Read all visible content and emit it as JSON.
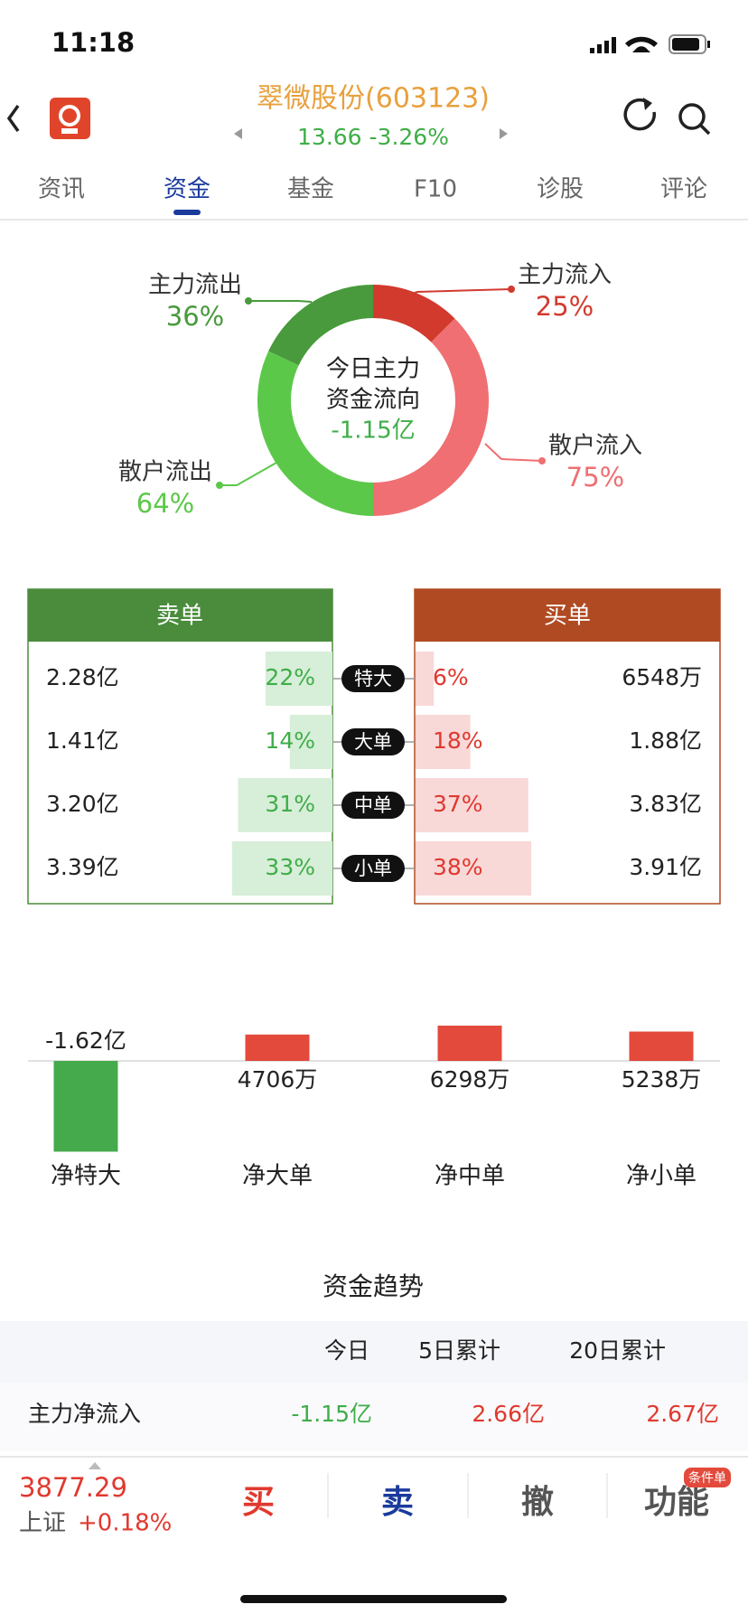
{
  "status": {
    "time": "11:18"
  },
  "header": {
    "title": "翠微股份(603123)",
    "quote": "13.66 -3.26%"
  },
  "tabs": [
    "资讯",
    "资金",
    "基金",
    "F10",
    "诊股",
    "评论"
  ],
  "donut": {
    "center": [
      "今日主力",
      "资金流向"
    ],
    "center_value": "-1.15亿",
    "segments": [
      {
        "name": "主力流入",
        "value": 25,
        "label": "25%",
        "color": "#d23a2e"
      },
      {
        "name": "散户流入",
        "value": 75,
        "label": "75%",
        "color": "#ef6f72"
      },
      {
        "name": "散户流出",
        "value": 64,
        "label": "64%",
        "color": "#5cc84a"
      },
      {
        "name": "主力流出",
        "value": 36,
        "label": "36%",
        "color": "#489a3c"
      }
    ]
  },
  "orders": {
    "sell_header": "卖单",
    "buy_header": "买单",
    "rows": [
      {
        "type": "特大",
        "sell": "2.28亿",
        "sell_pct": {
          "value": 22,
          "label": "22%"
        },
        "buy_pct": {
          "value": 6,
          "label": "6%"
        },
        "buy": "6548万"
      },
      {
        "type": "大单",
        "sell": "1.41亿",
        "sell_pct": {
          "value": 14,
          "label": "14%"
        },
        "buy_pct": {
          "value": 18,
          "label": "18%"
        },
        "buy": "1.88亿"
      },
      {
        "type": "中单",
        "sell": "3.20亿",
        "sell_pct": {
          "value": 31,
          "label": "31%"
        },
        "buy_pct": {
          "value": 37,
          "label": "37%"
        },
        "buy": "3.83亿"
      },
      {
        "type": "小单",
        "sell": "3.39亿",
        "sell_pct": {
          "value": 33,
          "label": "33%"
        },
        "buy_pct": {
          "value": 38,
          "label": "38%"
        },
        "buy": "3.91亿"
      }
    ]
  },
  "net": [
    {
      "name": "净特大",
      "value": -1.62,
      "label": "-1.62亿"
    },
    {
      "name": "净大单",
      "value": 0.4706,
      "label": "4706万"
    },
    {
      "name": "净中单",
      "value": 0.6298,
      "label": "6298万"
    },
    {
      "name": "净小单",
      "value": 0.5238,
      "label": "5238万"
    }
  ],
  "trend": {
    "title": "资金趋势",
    "columns": [
      "今日",
      "5日累计",
      "20日累计"
    ],
    "rows": [
      {
        "name": "主力净流入",
        "values": [
          "-1.15亿",
          "2.66亿",
          "2.67亿"
        ]
      }
    ]
  },
  "footer": {
    "index_value": "3877.29",
    "index_name": "上证",
    "index_change": "+0.18%",
    "buttons": [
      "买",
      "卖",
      "撤",
      "功能"
    ],
    "badge": "条件单"
  }
}
